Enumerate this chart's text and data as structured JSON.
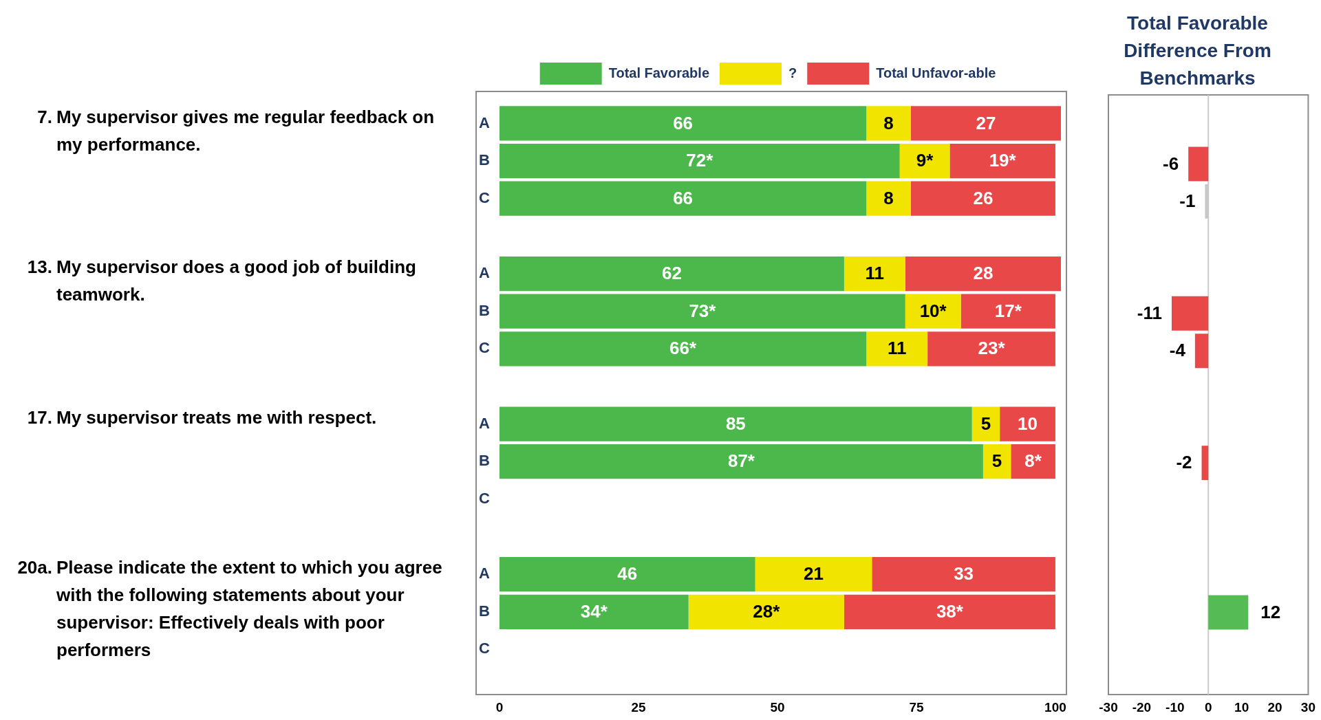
{
  "chart_data": [
    {
      "type": "bar",
      "orientation": "horizontal",
      "stacked": true,
      "legend": "top",
      "categories": [
        "A",
        "B",
        "C",
        "A",
        "B",
        "C",
        "A",
        "B",
        "C",
        "A",
        "B",
        "C"
      ],
      "xlim": [
        0,
        101
      ],
      "xticks": [
        0,
        25,
        50,
        75,
        100
      ],
      "series": [
        {
          "name": "Total Favorable",
          "color": "#4cb84c",
          "values": [
            66,
            72,
            66,
            62,
            73,
            66,
            85,
            87,
            null,
            46,
            34,
            null
          ],
          "value_labels": [
            "66",
            "72*",
            "66",
            "62",
            "73*",
            "66*",
            "85",
            "87*",
            null,
            "46",
            "34*",
            null
          ]
        },
        {
          "name": "?",
          "color": "#f0e400",
          "values": [
            8,
            9,
            8,
            11,
            10,
            11,
            5,
            5,
            null,
            21,
            28,
            null
          ],
          "value_labels": [
            "8",
            "9*",
            "8",
            "11",
            "10*",
            "11",
            "5",
            "5",
            null,
            "21",
            "28*",
            null
          ]
        },
        {
          "name": "Total Unfavor-able",
          "color": "#e84848",
          "values": [
            27,
            19,
            26,
            28,
            17,
            23,
            10,
            8,
            null,
            33,
            38,
            null
          ],
          "value_labels": [
            "27",
            "19*",
            "26",
            "28",
            "17*",
            "23*",
            "10",
            "8*",
            null,
            "33",
            "38*",
            null
          ]
        }
      ],
      "annotations": [
        "7. My supervisor gives me regular feedback on my performance.",
        "13. My supervisor does a good job of building teamwork.",
        "17. My supervisor treats me with respect.",
        "20a. Please indicate the extent to which you agree with the following statements about your supervisor: Effectively deals with poor performers"
      ]
    },
    {
      "type": "bar",
      "orientation": "horizontal",
      "title": "Total Favorable Difference From Benchmarks",
      "categories": [
        null,
        null,
        null,
        null,
        null,
        null,
        null,
        null,
        null,
        null,
        null,
        null
      ],
      "values": [
        null,
        -6,
        -1,
        null,
        -11,
        -4,
        null,
        -2,
        null,
        null,
        12,
        null
      ],
      "colors": [
        "#e84848",
        "#e84848",
        "#c8c8c8",
        "#e84848",
        "#e84848",
        "#e84848",
        "#e84848",
        "#e84848",
        "#e84848",
        "#e84848",
        "#55bb55",
        "#e84848"
      ],
      "xlim": [
        -30,
        30
      ],
      "xticks": [
        -30,
        -20,
        -10,
        0,
        10,
        20,
        30
      ],
      "data_labels": true,
      "tick_labels": "x",
      "ref_lines": [
        {
          "axis": "x",
          "value": 0,
          "color": "#cccccc"
        }
      ]
    }
  ]
}
